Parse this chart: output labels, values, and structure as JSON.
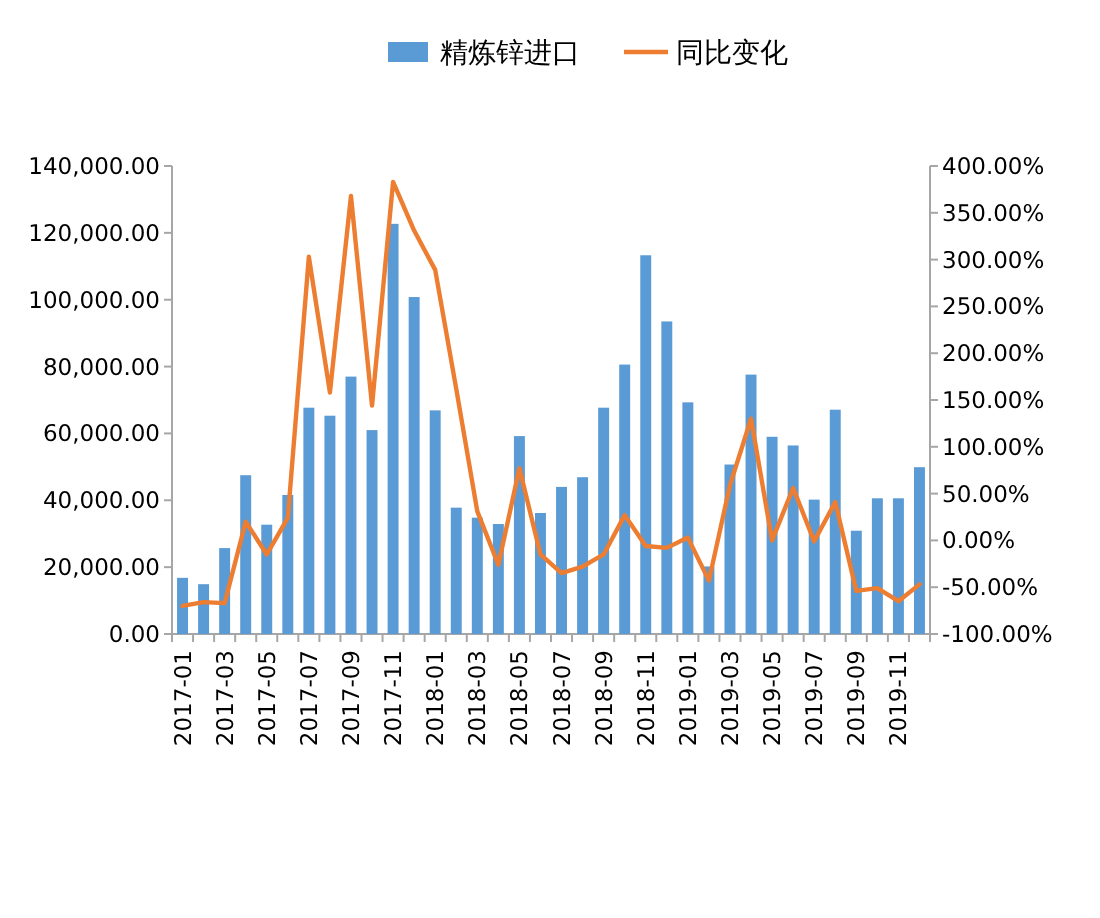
{
  "chart_data": {
    "type": "bar",
    "categories": [
      "2017-01",
      null,
      "2017-03",
      null,
      "2017-05",
      null,
      "2017-07",
      null,
      "2017-09",
      null,
      "2017-11",
      null,
      "2018-01",
      null,
      "2018-03",
      null,
      "2018-05",
      null,
      "2018-07",
      null,
      "2018-09",
      null,
      "2018-11",
      null,
      "2019-01",
      null,
      "2019-03",
      null,
      "2019-05",
      null,
      "2019-07",
      null,
      "2019-09",
      null,
      "2019-11",
      null
    ],
    "series": [
      {
        "name": "精炼锌进口",
        "axis": "y",
        "color": "#5b9bd5",
        "values": [
          16800,
          14900,
          25700,
          47500,
          32700,
          41600,
          67700,
          65300,
          77000,
          61000,
          122700,
          100800,
          66900,
          37800,
          34800,
          32900,
          59200,
          36200,
          44000,
          46900,
          67700,
          80600,
          113300,
          93500,
          69300,
          20200,
          50700,
          77600,
          59000,
          56400,
          40200,
          67100,
          30900,
          40600,
          40600,
          49900
        ]
      },
      {
        "name": "同比变化",
        "type": "line",
        "axis": "y2",
        "color": "#ed7d31",
        "values": [
          -70,
          -66,
          -67,
          20,
          -15,
          24,
          303,
          158,
          368,
          144,
          383,
          331,
          289,
          162,
          31,
          -26,
          77,
          -15,
          -35,
          -28,
          -15,
          27,
          -6,
          -8,
          3,
          -43,
          59,
          130,
          0,
          56,
          -1,
          41,
          -54,
          -51,
          -65,
          -47
        ]
      }
    ],
    "ylim": [
      0,
      140000
    ],
    "yticks": [
      {
        "value": 0,
        "label": "0.00"
      },
      {
        "value": 20000,
        "label": "20,000.00"
      },
      {
        "value": 40000,
        "label": "40,000.00"
      },
      {
        "value": 60000,
        "label": "60,000.00"
      },
      {
        "value": 80000,
        "label": "80,000.00"
      },
      {
        "value": 100000,
        "label": "100,000.00"
      },
      {
        "value": 120000,
        "label": "120,000.00"
      },
      {
        "value": 140000,
        "label": "140,000.00"
      }
    ],
    "y2lim": [
      -100,
      400
    ],
    "y2ticks": [
      {
        "value": -100,
        "label": "-100.00%"
      },
      {
        "value": -50,
        "label": "-50.00%"
      },
      {
        "value": 0,
        "label": "0.00%"
      },
      {
        "value": 50,
        "label": "50.00%"
      },
      {
        "value": 100,
        "label": "100.00%"
      },
      {
        "value": 150,
        "label": "150.00%"
      },
      {
        "value": 200,
        "label": "200.00%"
      },
      {
        "value": 250,
        "label": "250.00%"
      },
      {
        "value": 300,
        "label": "300.00%"
      },
      {
        "value": 350,
        "label": "350.00%"
      },
      {
        "value": 400,
        "label": "400.00%"
      }
    ],
    "legend": "top"
  }
}
